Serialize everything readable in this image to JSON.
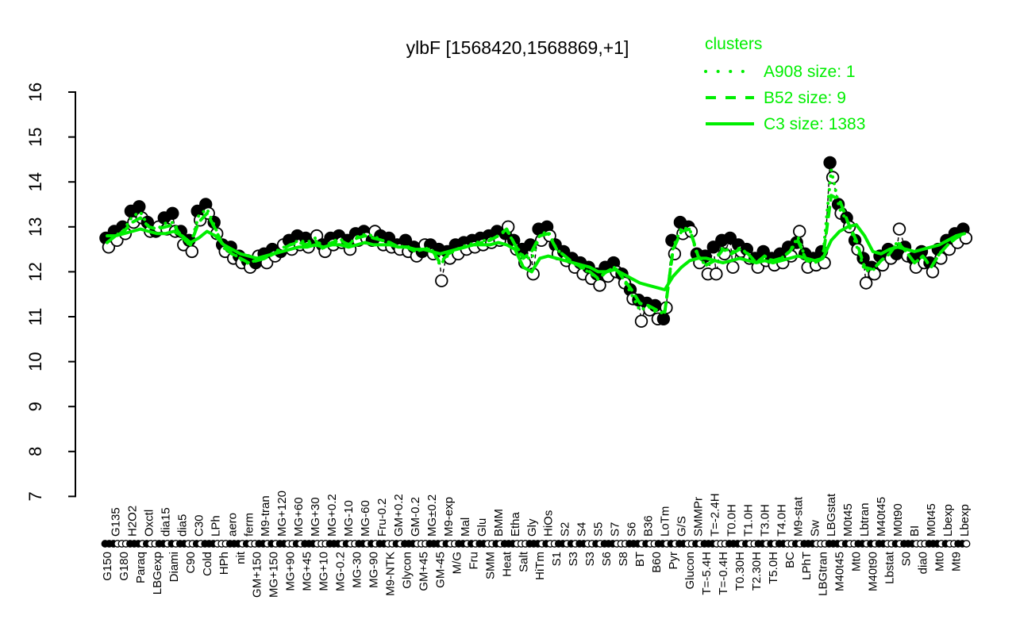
{
  "colors": {
    "cluster_green": "#00ee00",
    "point_fill": "#000000",
    "point_open_fill": "#ffffff",
    "axis": "#000000",
    "background": "#ffffff"
  },
  "legend": {
    "title": "clusters",
    "items": [
      {
        "label": "A908 size: 1",
        "line_style": "dotted"
      },
      {
        "label": "B52 size: 9",
        "line_style": "dashed"
      },
      {
        "label": "C3 size: 1383",
        "line_style": "solid"
      }
    ]
  },
  "chart_data": {
    "type": "line",
    "title": "ylbF [1568420,1568869,+1]",
    "xlabel": "",
    "ylabel": "",
    "ylim": [
      7,
      16
    ],
    "yticks": [
      7,
      8,
      9,
      10,
      11,
      12,
      13,
      14,
      15,
      16
    ],
    "grid": false,
    "legend_position": "top-right",
    "x_label_rows": "alternating-bottom-first",
    "categories": [
      "G150",
      "G135",
      "G180",
      "H2O2",
      "Paraq",
      "Oxctl",
      "LBGexp",
      "dia15",
      "Diami",
      "dia5",
      "C90",
      "C30",
      "Cold",
      "LPh",
      "HPh",
      "aero",
      "nit",
      "ferm",
      "GM+150",
      "M9-tran",
      "MG+150",
      "MG+120",
      "MG+90",
      "MG+60",
      "MG+45",
      "MG+30",
      "MG+10",
      "MG+0.2",
      "MG-0.2",
      "MG-10",
      "MG-30",
      "MG-60",
      "MG-90",
      "Fru-0.2",
      "M9-NTK",
      "GM+0.2",
      "Glycon",
      "GM-0.2",
      "GM+45",
      "MG±0.2",
      "GM-45",
      "M9-exp",
      "M/G",
      "Mal",
      "Fru",
      "Glu",
      "SMM",
      "BMM",
      "Heat",
      "Etha",
      "Salt",
      "Gly",
      "HiTm",
      "HiOs",
      "S1",
      "S2",
      "S3",
      "S4",
      "S3",
      "S5",
      "S6",
      "S7",
      "S8",
      "S6",
      "BT",
      "B36",
      "B60",
      "LoTm",
      "Pyr",
      "G/S",
      "Glucon",
      "SMMPr",
      "T=-5.4H",
      "T=-2.4H",
      "T=-0.4H",
      "T0.0H",
      "T0.30H",
      "T1.0H",
      "T2.30H",
      "T3.0H",
      "T5.0H",
      "T4.0H",
      "BC",
      "M9-stat",
      "LPhT",
      "Sw",
      "LBGtran",
      "LBGstat",
      "M40t45",
      "M0t45",
      "Mt0",
      "Lbtran",
      "M40t90",
      "M40t45",
      "Lbstat",
      "M0t90",
      "S0",
      "BI",
      "dia0",
      "M0t45",
      "Mt0",
      "Lbexp",
      "Mt9",
      "Lbexp"
    ],
    "series": [
      {
        "name": "samples-filled",
        "marker": "filled-circle",
        "values": [
          12.75,
          12.9,
          13.0,
          13.35,
          13.45,
          13.1,
          12.9,
          13.2,
          13.3,
          12.9,
          12.7,
          13.35,
          13.5,
          13.1,
          12.6,
          12.55,
          12.35,
          12.25,
          12.2,
          12.4,
          12.5,
          12.45,
          12.7,
          12.8,
          12.75,
          12.7,
          12.6,
          12.75,
          12.8,
          12.7,
          12.85,
          12.9,
          12.7,
          12.8,
          12.75,
          12.6,
          12.7,
          12.55,
          12.45,
          12.6,
          12.5,
          12.45,
          12.6,
          12.65,
          12.7,
          12.75,
          12.8,
          12.9,
          12.85,
          12.7,
          12.5,
          12.6,
          12.95,
          13.0,
          12.6,
          12.45,
          12.3,
          12.2,
          12.1,
          11.95,
          12.1,
          12.2,
          11.95,
          11.6,
          11.37,
          11.3,
          11.25,
          10.95,
          12.7,
          13.1,
          13.0,
          12.4,
          12.35,
          12.55,
          12.7,
          12.75,
          12.6,
          12.5,
          12.3,
          12.45,
          12.3,
          12.4,
          12.55,
          12.65,
          12.4,
          12.3,
          12.45,
          14.43,
          13.5,
          13.2,
          12.7,
          12.3,
          12.1,
          12.35,
          12.5,
          12.4,
          12.55,
          12.3,
          12.45,
          12.2,
          12.5,
          12.7,
          12.85,
          12.95
        ]
      },
      {
        "name": "samples-open",
        "marker": "open-circle",
        "values": [
          12.55,
          12.7,
          12.85,
          13.1,
          13.2,
          12.9,
          13.0,
          12.95,
          12.9,
          12.6,
          12.45,
          13.15,
          13.3,
          12.85,
          12.45,
          12.3,
          12.2,
          12.1,
          12.35,
          12.2,
          12.35,
          12.6,
          12.5,
          12.6,
          12.55,
          12.8,
          12.45,
          12.6,
          12.65,
          12.5,
          12.7,
          12.75,
          12.9,
          12.6,
          12.55,
          12.5,
          12.45,
          12.35,
          12.6,
          12.4,
          11.8,
          12.3,
          12.4,
          12.5,
          12.55,
          12.6,
          12.65,
          12.7,
          13.0,
          12.5,
          12.2,
          11.95,
          12.7,
          12.8,
          12.4,
          12.25,
          12.1,
          11.95,
          11.85,
          11.7,
          11.9,
          12.0,
          11.75,
          11.4,
          10.9,
          11.15,
          10.95,
          11.2,
          12.4,
          12.85,
          12.9,
          12.2,
          11.95,
          11.95,
          12.4,
          12.1,
          12.45,
          12.3,
          12.1,
          12.25,
          12.15,
          12.2,
          12.35,
          12.9,
          12.1,
          12.15,
          12.2,
          14.1,
          13.3,
          13.0,
          12.5,
          11.75,
          11.95,
          12.15,
          12.3,
          12.95,
          12.35,
          12.1,
          12.2,
          12.0,
          12.3,
          12.5,
          12.65,
          12.75
        ]
      },
      {
        "name": "A908",
        "line": "dotted",
        "values": [
          12.65,
          12.8,
          12.93,
          13.23,
          13.33,
          13.0,
          12.95,
          13.08,
          13.1,
          12.75,
          12.58,
          13.25,
          13.4,
          12.98,
          12.53,
          12.43,
          12.28,
          12.18,
          12.28,
          12.3,
          12.43,
          12.53,
          12.6,
          12.7,
          12.65,
          12.75,
          12.53,
          12.68,
          12.73,
          12.6,
          12.78,
          12.83,
          12.8,
          12.7,
          12.65,
          12.55,
          12.58,
          12.45,
          12.53,
          12.5,
          12.15,
          12.38,
          12.5,
          12.58,
          12.63,
          12.68,
          12.73,
          12.8,
          12.93,
          12.6,
          12.35,
          12.28,
          12.83,
          12.9,
          12.5,
          12.35,
          12.2,
          12.08,
          11.98,
          11.83,
          12.0,
          12.1,
          11.85,
          11.5,
          11.14,
          11.23,
          11.1,
          11.08,
          12.55,
          12.98,
          12.95,
          12.3,
          12.15,
          12.25,
          12.55,
          12.43,
          12.53,
          12.4,
          12.2,
          12.35,
          12.23,
          12.3,
          12.45,
          12.78,
          12.25,
          12.23,
          12.33,
          14.27,
          13.4,
          13.1,
          12.6,
          12.03,
          12.03,
          12.25,
          12.4,
          12.68,
          12.45,
          12.2,
          12.33,
          12.1,
          12.4,
          12.6,
          12.75,
          12.85
        ]
      },
      {
        "name": "B52",
        "line": "dashed",
        "values": [
          12.65,
          12.8,
          12.9,
          13.1,
          13.2,
          13.0,
          12.95,
          13.0,
          13.05,
          12.75,
          12.6,
          13.1,
          13.3,
          12.95,
          12.55,
          12.4,
          12.3,
          12.2,
          12.25,
          12.3,
          12.4,
          12.5,
          12.6,
          12.65,
          12.6,
          12.7,
          12.5,
          12.65,
          12.7,
          12.6,
          12.75,
          12.8,
          12.75,
          12.7,
          12.65,
          12.55,
          12.55,
          12.45,
          12.5,
          12.5,
          12.2,
          12.4,
          12.5,
          12.55,
          12.6,
          12.65,
          12.7,
          12.8,
          12.95,
          12.6,
          12.3,
          12.45,
          12.8,
          12.85,
          12.5,
          12.35,
          12.2,
          12.1,
          12.0,
          11.85,
          12.0,
          12.1,
          11.85,
          11.6,
          11.3,
          11.25,
          11.15,
          11.1,
          12.5,
          12.9,
          12.95,
          12.35,
          12.15,
          12.25,
          12.5,
          12.4,
          12.5,
          12.4,
          12.2,
          12.35,
          12.25,
          12.3,
          12.45,
          12.7,
          12.25,
          12.2,
          12.3,
          13.7,
          13.6,
          13.1,
          12.7,
          12.1,
          12.05,
          12.25,
          12.4,
          12.65,
          12.45,
          12.2,
          12.35,
          12.1,
          12.4,
          12.6,
          12.75,
          12.85
        ]
      },
      {
        "name": "C3",
        "line": "solid",
        "values": [
          12.8,
          12.8,
          12.85,
          12.9,
          12.95,
          12.9,
          12.85,
          12.85,
          12.9,
          12.8,
          12.65,
          12.75,
          12.9,
          12.8,
          12.6,
          12.5,
          12.4,
          12.35,
          12.3,
          12.35,
          12.4,
          12.45,
          12.5,
          12.55,
          12.55,
          12.6,
          12.55,
          12.6,
          12.6,
          12.55,
          12.6,
          12.65,
          12.6,
          12.6,
          12.6,
          12.55,
          12.55,
          12.5,
          12.5,
          12.45,
          12.4,
          12.45,
          12.5,
          12.55,
          12.6,
          12.6,
          12.6,
          12.65,
          12.6,
          12.5,
          12.1,
          12.0,
          12.3,
          12.35,
          12.3,
          12.25,
          12.2,
          12.15,
          12.1,
          12.0,
          12.0,
          12.05,
          11.95,
          11.85,
          11.75,
          11.7,
          11.65,
          11.6,
          11.9,
          12.1,
          12.25,
          12.3,
          12.3,
          12.25,
          12.2,
          12.25,
          12.3,
          12.25,
          12.2,
          12.25,
          12.2,
          12.25,
          12.3,
          12.35,
          12.3,
          12.25,
          12.3,
          12.7,
          12.9,
          13.0,
          13.05,
          12.8,
          12.45,
          12.4,
          12.5,
          12.55,
          12.5,
          12.45,
          12.5,
          12.55,
          12.6,
          12.7,
          12.8,
          12.85
        ]
      }
    ]
  }
}
